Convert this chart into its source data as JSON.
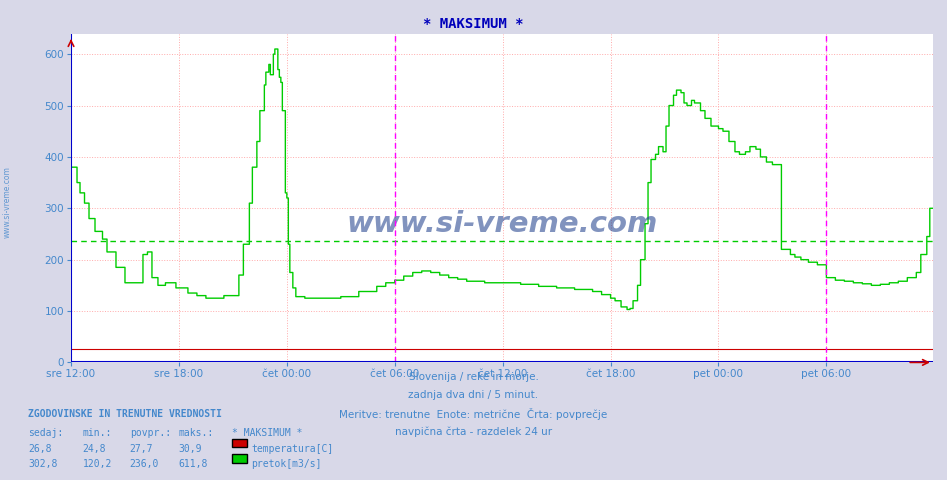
{
  "title": "* MAKSIMUM *",
  "title_color": "#0000bb",
  "bg_color": "#d8d8e8",
  "plot_bg_color": "#ffffff",
  "grid_color": "#ffaaaa",
  "border_color": "#0000cc",
  "ylabel_color": "#4488cc",
  "xlabel_color": "#4488cc",
  "ylim": [
    0,
    640
  ],
  "yticks": [
    0,
    100,
    200,
    300,
    400,
    500,
    600
  ],
  "n_points": 576,
  "avg_flow": 236.0,
  "avg_temp": 27.7,
  "text_lines": [
    "Slovenija / reke in morje.",
    "zadnja dva dni / 5 minut.",
    "Meritve: trenutne  Enote: metrične  Črta: povprečje",
    "navpična črta - razdelek 24 ur"
  ],
  "legend_title": "* MAKSIMUM *",
  "legend_entries": [
    {
      "label": "temperatura[C]",
      "color": "#cc0000"
    },
    {
      "label": "pretok[m3/s]",
      "color": "#00cc00"
    }
  ],
  "stats_header": "ZGODOVINSKE IN TRENUTNE VREDNOSTI",
  "stats_cols": [
    "sedaj:",
    "min.:",
    "povpr.:",
    "maks.:"
  ],
  "stats_rows": [
    [
      "26,8",
      "24,8",
      "27,7",
      "30,9"
    ],
    [
      "302,8",
      "120,2",
      "236,0",
      "611,8"
    ]
  ],
  "xlabel_ticks": [
    "sre 12:00",
    "sre 18:00",
    "čet 00:00",
    "čet 06:00",
    "čet 12:00",
    "čet 18:00",
    "pet 00:00",
    "pet 06:00"
  ],
  "watermark": "www.si-vreme.com",
  "watermark_color": "#1a3a8a"
}
